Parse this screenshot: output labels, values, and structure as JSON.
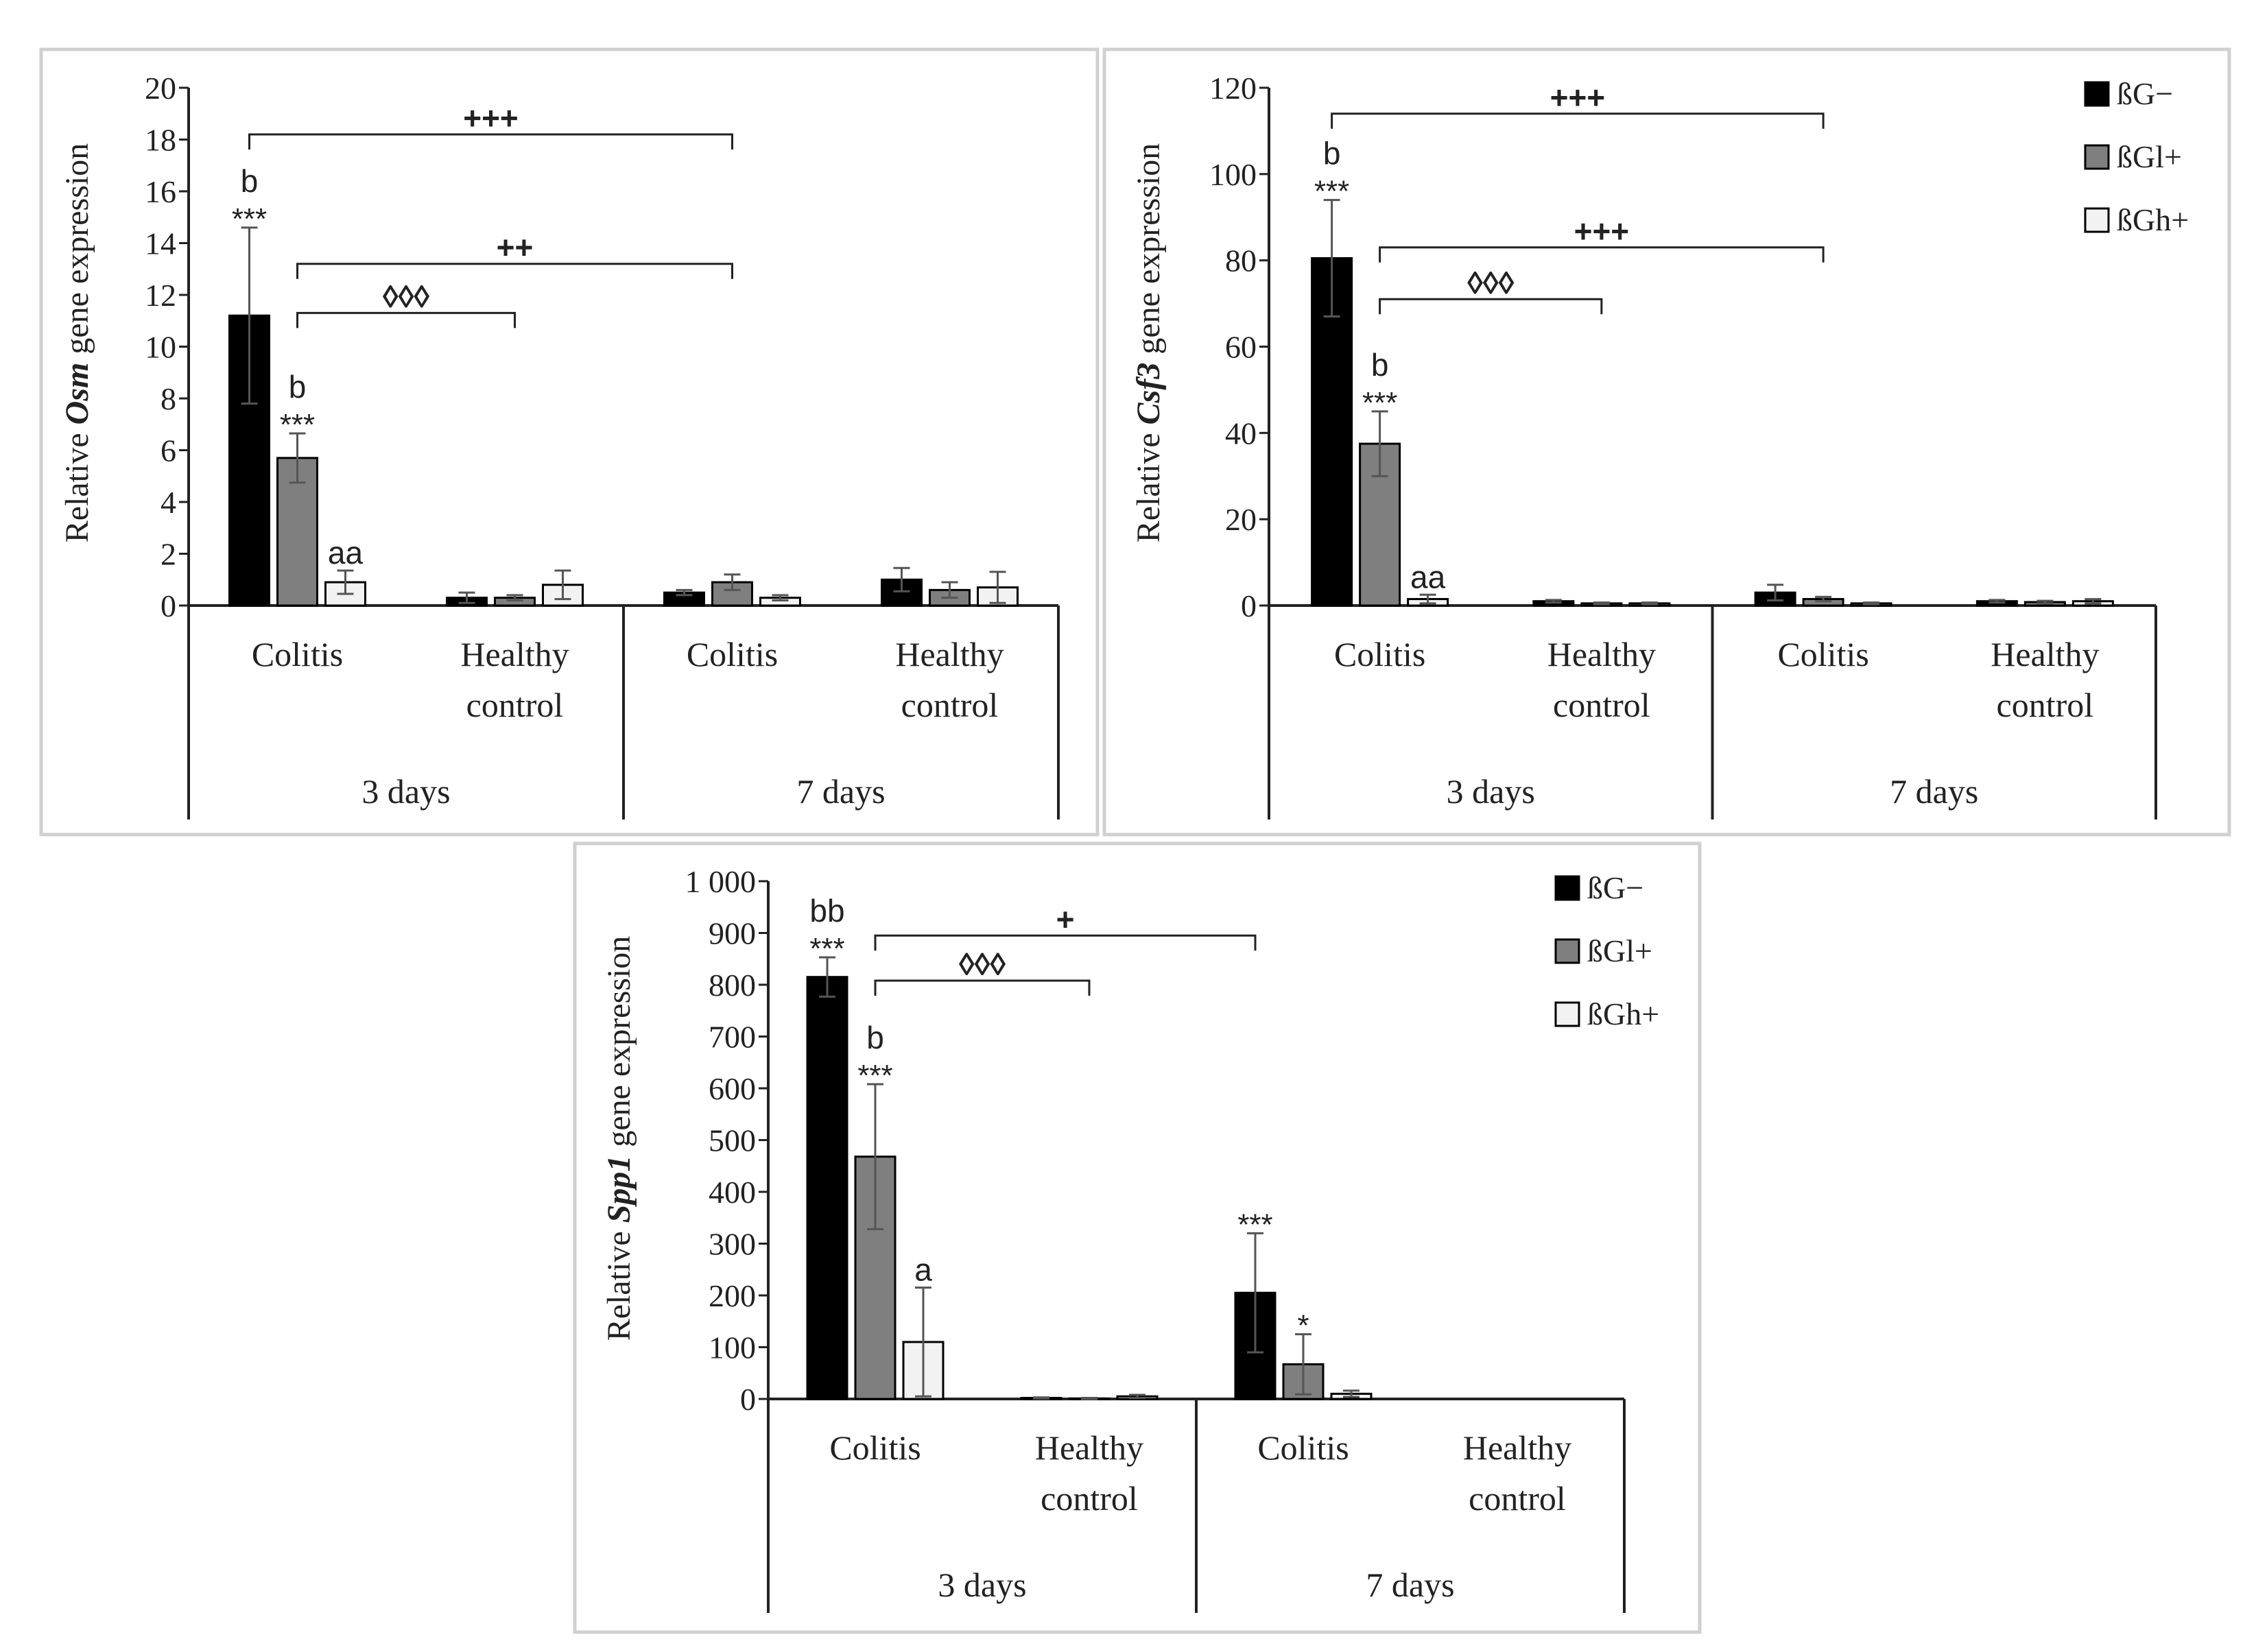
{
  "legend": [
    "ßG−",
    "ßGl+",
    "ßGh+"
  ],
  "colors": {
    "series": [
      "#000000",
      "#7f7f7f",
      "#f2f2f2"
    ],
    "frame": "#d0d0d0",
    "axis": "#222222",
    "error": "#555555"
  },
  "chart_data": [
    {
      "type": "bar",
      "gene": "Osm",
      "ylabel_pre": "Relative ",
      "ylabel_gene": "Osm",
      "ylabel_post": " gene expression",
      "ylim": [
        0,
        20
      ],
      "yticks": [
        "0",
        "2",
        "4",
        "6",
        "8",
        "10",
        "12",
        "14",
        "16",
        "18",
        "20"
      ],
      "ytick_values": [
        0,
        2,
        4,
        6,
        8,
        10,
        12,
        14,
        16,
        18,
        20
      ],
      "groups": [
        "3 days",
        "7 days"
      ],
      "categories": [
        "Colitis",
        "Healthy control",
        "Colitis",
        "Healthy control"
      ],
      "series": [
        {
          "name": "ßG−",
          "values": [
            11.2,
            0.3,
            0.5,
            1.0
          ],
          "errors": [
            3.4,
            0.2,
            0.1,
            0.45
          ]
        },
        {
          "name": "ßGl+",
          "values": [
            5.7,
            0.3,
            0.9,
            0.6
          ],
          "errors": [
            0.95,
            0.1,
            0.3,
            0.3
          ]
        },
        {
          "name": "ßGh+",
          "values": [
            0.9,
            0.8,
            0.3,
            0.7
          ],
          "errors": [
            0.45,
            0.55,
            0.1,
            0.6
          ]
        }
      ],
      "labels": [
        {
          "cat": 0,
          "series": 0,
          "stars": "***",
          "letter": "b"
        },
        {
          "cat": 0,
          "series": 1,
          "stars": "***",
          "letter": "b"
        },
        {
          "cat": 0,
          "series": 2,
          "stars": "",
          "letter": "aa"
        }
      ],
      "brackets": [
        {
          "from": [
            0,
            0
          ],
          "to": [
            2,
            1
          ],
          "level": 18.2,
          "text": "+++"
        },
        {
          "from": [
            0,
            1
          ],
          "to": [
            2,
            1
          ],
          "level": 13.2,
          "text": "++"
        },
        {
          "from": [
            0,
            1
          ],
          "to": [
            1,
            1
          ],
          "level": 11.3,
          "text": "◊◊◊"
        }
      ]
    },
    {
      "type": "bar",
      "gene": "Csf3",
      "ylabel_pre": "Relative ",
      "ylabel_gene": "Csf3",
      "ylabel_post": " gene expression",
      "ylim": [
        0,
        120
      ],
      "yticks": [
        "0",
        "20",
        "40",
        "60",
        "80",
        "100",
        "120"
      ],
      "ytick_values": [
        0,
        20,
        40,
        60,
        80,
        100,
        120
      ],
      "groups": [
        "3 days",
        "7 days"
      ],
      "categories": [
        "Colitis",
        "Healthy control",
        "Colitis",
        "Healthy control"
      ],
      "series": [
        {
          "name": "ßG−",
          "values": [
            80.5,
            1.0,
            3.0,
            1.0
          ],
          "errors": [
            13.5,
            0.3,
            1.8,
            0.3
          ]
        },
        {
          "name": "ßGl+",
          "values": [
            37.5,
            0.5,
            1.5,
            0.8
          ],
          "errors": [
            7.5,
            0.2,
            0.5,
            0.3
          ]
        },
        {
          "name": "ßGh+",
          "values": [
            1.5,
            0.5,
            0.5,
            1.0
          ],
          "errors": [
            1.0,
            0.2,
            0.2,
            0.5
          ]
        }
      ],
      "labels": [
        {
          "cat": 0,
          "series": 0,
          "stars": "***",
          "letter": "b"
        },
        {
          "cat": 0,
          "series": 1,
          "stars": "***",
          "letter": "b"
        },
        {
          "cat": 0,
          "series": 2,
          "stars": "",
          "letter": "aa"
        }
      ],
      "brackets": [
        {
          "from": [
            0,
            0
          ],
          "to": [
            2,
            1
          ],
          "level": 114,
          "text": "+++"
        },
        {
          "from": [
            0,
            1
          ],
          "to": [
            2,
            1
          ],
          "level": 83,
          "text": "+++"
        },
        {
          "from": [
            0,
            1
          ],
          "to": [
            1,
            1
          ],
          "level": 71,
          "text": "◊◊◊"
        }
      ]
    },
    {
      "type": "bar",
      "gene": "Spp1",
      "ylabel_pre": "Relative ",
      "ylabel_gene": "Spp1",
      "ylabel_post": " gene expression",
      "ylim": [
        0,
        1000
      ],
      "yticks": [
        "0",
        "100",
        "200",
        "300",
        "400",
        "500",
        "600",
        "700",
        "800",
        "900",
        "1 000"
      ],
      "ytick_values": [
        0,
        100,
        200,
        300,
        400,
        500,
        600,
        700,
        800,
        900,
        1000
      ],
      "groups": [
        "3 days",
        "7 days"
      ],
      "categories": [
        "Colitis",
        "Healthy control",
        "Colitis",
        "Healthy control"
      ],
      "series": [
        {
          "name": "ßG−",
          "values": [
            815,
            2,
            205,
            0
          ],
          "errors": [
            38,
            1,
            115,
            0
          ]
        },
        {
          "name": "ßGl+",
          "values": [
            468,
            1,
            67,
            0
          ],
          "errors": [
            140,
            1,
            58,
            0
          ]
        },
        {
          "name": "ßGh+",
          "values": [
            110,
            5,
            10,
            0
          ],
          "errors": [
            105,
            3,
            6,
            0
          ]
        }
      ],
      "labels": [
        {
          "cat": 0,
          "series": 0,
          "stars": "***",
          "letter": "bb"
        },
        {
          "cat": 0,
          "series": 1,
          "stars": "***",
          "letter": "b"
        },
        {
          "cat": 0,
          "series": 2,
          "stars": "",
          "letter": "a"
        },
        {
          "cat": 2,
          "series": 0,
          "stars": "***",
          "letter": ""
        },
        {
          "cat": 2,
          "series": 1,
          "stars": "*",
          "letter": ""
        }
      ],
      "brackets": [
        {
          "from": [
            0,
            1
          ],
          "to": [
            2,
            0
          ],
          "level": 895,
          "text": "+"
        },
        {
          "from": [
            0,
            1
          ],
          "to": [
            1,
            1
          ],
          "level": 808,
          "text": "◊◊◊"
        }
      ]
    }
  ]
}
